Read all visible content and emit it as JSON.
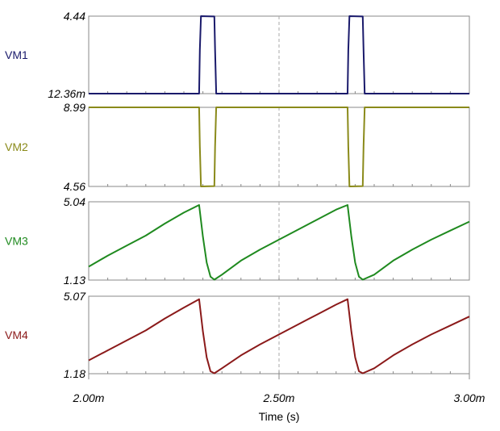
{
  "chart_data": {
    "type": "line",
    "xlabel": "Time (s)",
    "xlim": [
      0.002,
      0.003
    ],
    "x_tick_values": [
      0.002,
      0.0025,
      0.003
    ],
    "x_tick_labels": [
      "2.00m",
      "2.50m",
      "3.00m"
    ],
    "grid": "dashed vertical line at 2.50m in each panel",
    "panels": [
      {
        "name": "VM1",
        "color": "#1a1a6b",
        "ylim": [
          0.01236,
          4.44
        ],
        "y_tick_labels": [
          "4.44",
          "12.36m"
        ],
        "x": [
          0.002,
          0.00229,
          0.002292,
          0.002295,
          0.00233,
          0.002332,
          0.002335,
          0.00268,
          0.002682,
          0.002685,
          0.00272,
          0.002722,
          0.002725,
          0.003
        ],
        "values": [
          0.01236,
          0.01236,
          2.5,
          4.44,
          4.42,
          2.5,
          0.01236,
          0.01236,
          2.5,
          4.44,
          4.42,
          2.5,
          0.01236,
          0.01236
        ]
      },
      {
        "name": "VM2",
        "color": "#8a8a1a",
        "ylim": [
          4.56,
          8.99
        ],
        "y_tick_labels": [
          "8.99",
          "4.56"
        ],
        "x": [
          0.002,
          0.00229,
          0.002292,
          0.002295,
          0.00233,
          0.002332,
          0.002335,
          0.00268,
          0.002682,
          0.002685,
          0.00272,
          0.002722,
          0.002725,
          0.003
        ],
        "values": [
          8.99,
          8.99,
          6.8,
          4.56,
          4.58,
          6.8,
          8.99,
          8.99,
          6.8,
          4.56,
          4.58,
          6.8,
          8.99,
          8.99
        ]
      },
      {
        "name": "VM3",
        "color": "#1f8a1f",
        "ylim": [
          1.13,
          5.04
        ],
        "y_tick_labels": [
          "5.04",
          "1.13"
        ],
        "x": [
          0.002,
          0.00205,
          0.0021,
          0.00215,
          0.0022,
          0.00225,
          0.00229,
          0.0023,
          0.00231,
          0.00232,
          0.00233,
          0.00235,
          0.0024,
          0.00245,
          0.0025,
          0.00255,
          0.0026,
          0.00265,
          0.00268,
          0.00269,
          0.0027,
          0.00271,
          0.00272,
          0.00275,
          0.0028,
          0.00285,
          0.0029,
          0.00295,
          0.003
        ],
        "values": [
          1.8,
          2.35,
          2.85,
          3.35,
          3.95,
          4.5,
          4.88,
          3.3,
          2.0,
          1.3,
          1.15,
          1.4,
          2.1,
          2.65,
          3.15,
          3.65,
          4.15,
          4.65,
          4.88,
          3.3,
          2.0,
          1.3,
          1.15,
          1.4,
          2.1,
          2.65,
          3.15,
          3.6,
          4.05
        ]
      },
      {
        "name": "VM4",
        "color": "#8b1a1a",
        "ylim": [
          1.18,
          5.07
        ],
        "y_tick_labels": [
          "5.07",
          "1.18"
        ],
        "x": [
          0.002,
          0.00205,
          0.0021,
          0.00215,
          0.0022,
          0.00225,
          0.00229,
          0.0023,
          0.00231,
          0.00232,
          0.00233,
          0.00235,
          0.0024,
          0.00245,
          0.0025,
          0.00255,
          0.0026,
          0.00265,
          0.00268,
          0.00269,
          0.0027,
          0.00271,
          0.00272,
          0.00275,
          0.0028,
          0.00285,
          0.0029,
          0.00295,
          0.003
        ],
        "values": [
          1.85,
          2.35,
          2.85,
          3.35,
          3.95,
          4.5,
          4.92,
          3.3,
          2.0,
          1.3,
          1.2,
          1.45,
          2.1,
          2.65,
          3.15,
          3.65,
          4.15,
          4.65,
          4.92,
          3.3,
          2.0,
          1.3,
          1.2,
          1.45,
          2.1,
          2.65,
          3.15,
          3.6,
          4.05
        ]
      }
    ]
  }
}
